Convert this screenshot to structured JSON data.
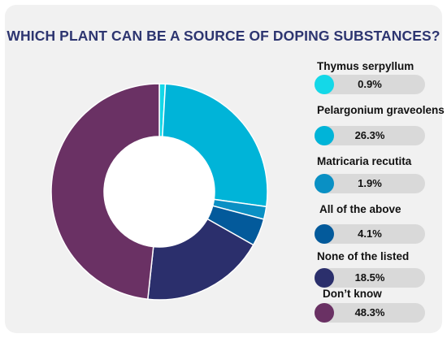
{
  "chart_data": {
    "type": "pie",
    "title": "WHICH PLANT CAN BE A SOURCE OF DOPING SUBSTANCES?",
    "categories": [
      "Thymus serpyllum",
      "Pelargonium graveolens",
      "Matricaria recutita",
      "All of the above",
      "None of the listed",
      "Don’t know"
    ],
    "values": [
      0.9,
      26.3,
      1.9,
      4.1,
      18.5,
      48.3
    ],
    "value_labels": [
      "0.9%",
      "26.3%",
      "1.9%",
      "4.1%",
      "18.5%",
      "48.3%"
    ],
    "colors": [
      "#14d8e8",
      "#00b4d8",
      "#0a90c4",
      "#035a9b",
      "#2b2f6c",
      "#6a3164"
    ],
    "legend_position": "right",
    "style": "donut"
  }
}
